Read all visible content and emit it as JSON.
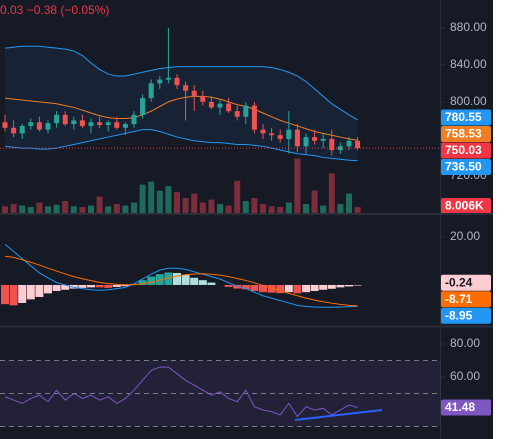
{
  "chart_data": [
    {
      "type": "candlestick",
      "title": "0.03 −0.38 (−0.05%)",
      "title_color": "#f23645",
      "ylim": [
        680,
        910
      ],
      "yticks": [
        {
          "value": 880,
          "label": "880.00"
        },
        {
          "value": 840,
          "label": "840.00"
        },
        {
          "value": 800,
          "label": "800.00"
        },
        {
          "value": 720,
          "label": "720.00"
        }
      ],
      "up_color": "#26a69a",
      "down_color": "#ef5350",
      "open": [
        778,
        772,
        766,
        774,
        778,
        770,
        777,
        786,
        776,
        780,
        774,
        778,
        775,
        778,
        772,
        776,
        786,
        804,
        820,
        824,
        826,
        818,
        812,
        806,
        800,
        794,
        798,
        790,
        784,
        796,
        770,
        766,
        764,
        760,
        770,
        752,
        762,
        758,
        760,
        748,
        752,
        758
      ],
      "high": [
        786,
        780,
        776,
        782,
        784,
        780,
        790,
        790,
        784,
        786,
        782,
        784,
        780,
        784,
        778,
        790,
        808,
        824,
        828,
        880,
        830,
        822,
        818,
        812,
        806,
        802,
        804,
        796,
        800,
        800,
        776,
        772,
        770,
        790,
        776,
        766,
        770,
        766,
        770,
        756,
        762,
        762
      ],
      "low": [
        768,
        762,
        760,
        770,
        768,
        766,
        772,
        774,
        770,
        772,
        766,
        772,
        768,
        770,
        764,
        772,
        782,
        800,
        814,
        820,
        814,
        780,
        790,
        796,
        792,
        786,
        788,
        780,
        776,
        766,
        760,
        758,
        756,
        744,
        746,
        744,
        754,
        750,
        742,
        744,
        748,
        748
      ],
      "close": [
        772,
        766,
        774,
        778,
        770,
        777,
        786,
        776,
        780,
        774,
        778,
        775,
        778,
        772,
        776,
        786,
        804,
        820,
        824,
        826,
        818,
        812,
        806,
        800,
        794,
        798,
        790,
        784,
        796,
        770,
        766,
        764,
        760,
        770,
        752,
        762,
        758,
        760,
        748,
        752,
        758,
        750.03
      ],
      "close_color": "#f23645",
      "volume": {
        "values": [
          9000,
          12000,
          10000,
          8000,
          14000,
          9000,
          11000,
          16000,
          9000,
          8000,
          10000,
          22000,
          9000,
          12000,
          10000,
          14000,
          38000,
          42000,
          30000,
          36000,
          28000,
          20000,
          26000,
          14000,
          18000,
          12000,
          10000,
          43000,
          16000,
          20000,
          12000,
          9000,
          8000,
          14000,
          73000,
          12000,
          30000,
          10000,
          53000,
          12000,
          26000,
          8006
        ],
        "ylim": [
          0,
          285000
        ],
        "up_color": "#1e6b5e",
        "down_color": "#7c2d3b",
        "last_label": "8.006K",
        "label_color": "#f23645"
      },
      "series": [
        {
          "name": "upper",
          "color": "#2196f3",
          "values": [
            858,
            859,
            860,
            860,
            860,
            859,
            858,
            857,
            855,
            850,
            842,
            835,
            830,
            828,
            828,
            830,
            832,
            834,
            836,
            837,
            838,
            838,
            838,
            838,
            838,
            838,
            838,
            838,
            838,
            838,
            838,
            837,
            835,
            832,
            828,
            822,
            814,
            806,
            798,
            792,
            786,
            780.55
          ]
        },
        {
          "name": "basis",
          "color": "#ef7d22",
          "values": [
            804,
            803,
            802,
            801,
            800,
            799,
            798,
            796,
            794,
            791,
            788,
            785,
            783,
            782,
            782,
            783,
            786,
            790,
            795,
            800,
            803,
            805,
            806,
            806,
            805,
            803,
            800,
            797,
            795,
            792,
            788,
            784,
            780,
            777,
            774,
            771,
            768,
            766,
            764,
            762,
            760,
            758.53
          ]
        },
        {
          "name": "lower",
          "color": "#2196f3",
          "values": [
            752,
            751,
            750,
            750,
            749,
            749,
            750,
            752,
            754,
            756,
            758,
            760,
            762,
            764,
            766,
            768,
            770,
            770,
            768,
            765,
            762,
            760,
            758,
            757,
            756,
            756,
            755,
            754,
            754,
            753,
            752,
            750,
            748,
            746,
            744,
            743,
            742,
            740,
            739,
            738,
            737,
            736.5
          ],
          "last_label": "736.50"
        }
      ]
    },
    {
      "type": "macd",
      "ylim": [
        -16.7,
        29.2
      ],
      "yticks": [
        {
          "value": 20,
          "label": "20.00"
        }
      ],
      "histogram": {
        "values": [
          -8,
          -8.5,
          -7.5,
          -6,
          -5,
          -3.5,
          -2.5,
          -2,
          -1.5,
          -1.2,
          -1,
          -1,
          -1.2,
          -0.8,
          -0.5,
          0.5,
          2,
          3.5,
          4.5,
          5.2,
          5,
          4.2,
          3,
          2,
          1,
          0,
          -0.8,
          -1.5,
          -1.8,
          -2.5,
          -3,
          -3.2,
          -3.4,
          -3,
          -3.5,
          -3,
          -2.5,
          -2,
          -1.6,
          -1,
          -0.6,
          -0.24
        ],
        "colors": [
          "#26a69a",
          "#b2dfdb",
          "#ef5350",
          "#ffcdd2"
        ],
        "label_color": "#ffcdd2"
      },
      "series": [
        {
          "name": "macd",
          "color": "#2196f3",
          "values": [
            17,
            14,
            11,
            8,
            5,
            3,
            1,
            0,
            -1,
            -1.5,
            -2,
            -2.2,
            -2,
            -1.5,
            -1,
            0.5,
            2.5,
            4.5,
            6.2,
            7,
            7,
            6.5,
            5.5,
            4.5,
            3.5,
            2.5,
            1,
            -0.5,
            -1.5,
            -3,
            -4.5,
            -5.5,
            -6.5,
            -7.5,
            -8.5,
            -9,
            -9.2,
            -9.3,
            -9.3,
            -9.2,
            -9.1,
            -8.95
          ]
        },
        {
          "name": "signal",
          "color": "#ff6d00",
          "values": [
            12,
            11.5,
            10.5,
            9.5,
            8.3,
            7,
            5.8,
            4.6,
            3.5,
            2.6,
            1.8,
            1.1,
            0.6,
            0.3,
            0.1,
            0.1,
            0.5,
            1.1,
            2,
            2.9,
            3.7,
            4.3,
            4.6,
            4.7,
            4.5,
            4.1,
            3.5,
            2.7,
            1.9,
            0.9,
            -0.2,
            -1.3,
            -2.4,
            -3.5,
            -4.5,
            -5.5,
            -6.3,
            -7,
            -7.6,
            -8.1,
            -8.5,
            -8.71
          ]
        }
      ]
    },
    {
      "type": "rsi",
      "ylim": [
        22.4,
        89.7
      ],
      "yticks": [
        {
          "value": 80,
          "label": "80.00"
        },
        {
          "value": 60,
          "label": "60.00"
        }
      ],
      "levels": [
        70,
        50,
        30
      ],
      "band_color": "rgba(126,87,194,0.12)",
      "series": [
        {
          "name": "rsi",
          "color": "#7e57c2",
          "values": [
            48,
            46,
            44,
            47,
            49,
            45,
            52,
            46,
            50,
            47,
            49,
            46,
            48,
            44,
            47,
            52,
            58,
            64,
            66,
            66,
            62,
            58,
            55,
            52,
            49,
            51,
            47,
            45,
            52,
            42,
            40,
            39,
            37,
            44,
            36,
            42,
            40,
            41,
            37,
            40,
            43,
            41.48
          ]
        }
      ]
    }
  ]
}
